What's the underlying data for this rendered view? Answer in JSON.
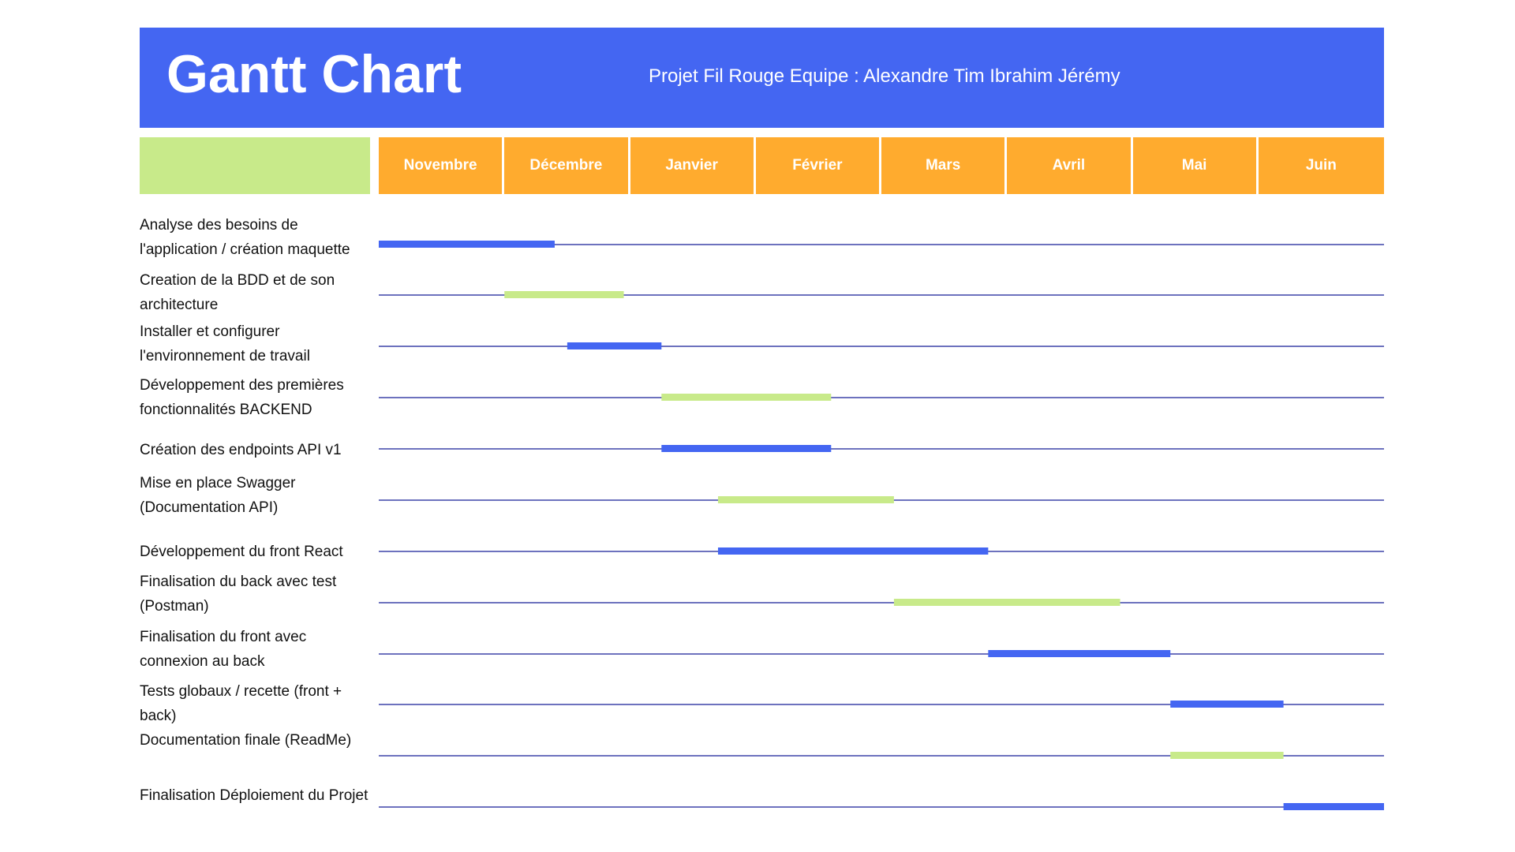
{
  "header": {
    "title": "Gantt Chart",
    "subtitle": "Projet Fil Rouge Equipe : Alexandre Tim Ibrahim Jérémy"
  },
  "colors": {
    "header_bg": "#4466f2",
    "month_bg": "#ffab2e",
    "corner_bg": "#c8ea8a",
    "bar_blue": "#4466f2",
    "bar_green": "#c8ea8a",
    "row_line": "#3d44a8"
  },
  "chart_data": {
    "type": "gantt",
    "title": "Gantt Chart",
    "subtitle": "Projet Fil Rouge Equipe : Alexandre Tim Ibrahim Jérémy",
    "months": [
      "Novembre",
      "Décembre",
      "Janvier",
      "Février",
      "Mars",
      "Avril",
      "Mai",
      "Juin"
    ],
    "time_unit": "month index (0 = début Novembre, 8 = fin Juin)",
    "tasks": [
      {
        "label": "Analyse des besoins de l'application / création maquette",
        "start": 0.0,
        "end": 1.4,
        "color": "blue"
      },
      {
        "label": "Creation de la BDD et de son architecture",
        "start": 1.0,
        "end": 1.95,
        "color": "green"
      },
      {
        "label": "Installer et configurer l'environnement de travail",
        "start": 1.5,
        "end": 2.25,
        "color": "blue"
      },
      {
        "label": "Développement des premières fonctionnalités BACKEND",
        "start": 2.25,
        "end": 3.6,
        "color": "green"
      },
      {
        "label": "Création des endpoints API v1",
        "start": 2.25,
        "end": 3.6,
        "color": "blue"
      },
      {
        "label": "Mise en place Swagger (Documentation API)",
        "start": 2.7,
        "end": 4.1,
        "color": "green"
      },
      {
        "label": "Développement du front React",
        "start": 2.7,
        "end": 4.85,
        "color": "blue"
      },
      {
        "label": "Finalisation du back avec test (Postman)",
        "start": 4.1,
        "end": 5.9,
        "color": "green"
      },
      {
        "label": "Finalisation du front avec connexion au back",
        "start": 4.85,
        "end": 6.3,
        "color": "blue"
      },
      {
        "label": "Tests globaux / recette (front + back)",
        "start": 6.3,
        "end": 7.2,
        "color": "blue"
      },
      {
        "label": "Documentation finale (ReadMe)",
        "start": 6.3,
        "end": 7.2,
        "color": "green"
      },
      {
        "label": "Finalisation Déploiement du Projet",
        "start": 7.2,
        "end": 8.0,
        "color": "blue"
      }
    ]
  }
}
